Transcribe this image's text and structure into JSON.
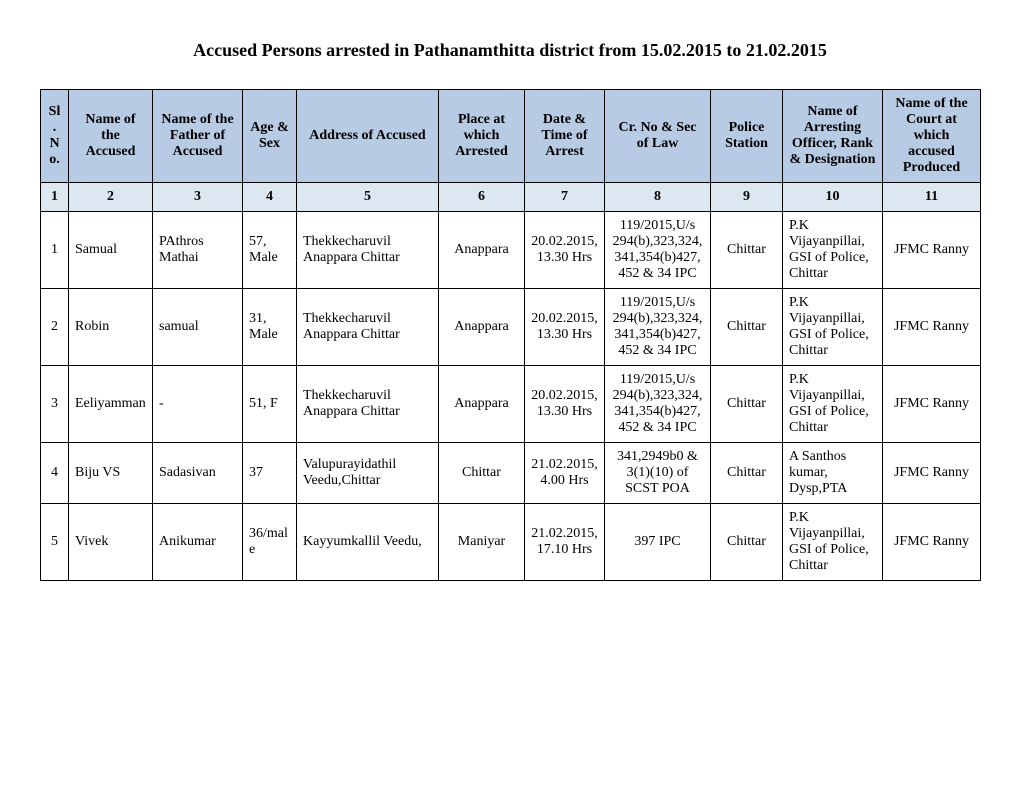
{
  "title": "Accused Persons arrested in Pathanamthitta  district from   15.02.2015 to 21.02.2015",
  "columns": [
    "Sl. No.",
    "Name of the Accused",
    "Name of the Father of Accused",
    "Age & Sex",
    "Address of Accused",
    "Place at which Arrested",
    "Date & Time of Arrest",
    "Cr. No & Sec of Law",
    "Police Station",
    "Name of Arresting Officer, Rank & Designation",
    "Name of the Court at which accused Produced"
  ],
  "numrow": [
    "1",
    "2",
    "3",
    "4",
    "5",
    "6",
    "7",
    "8",
    "9",
    "10",
    "11"
  ],
  "rows": [
    {
      "sl": "1",
      "name": "Samual",
      "father": "PAthros Mathai",
      "age": "57, Male",
      "addr": "Thekkecharuvil Anappara Chittar",
      "place": "Anappara",
      "date": "20.02.2015,13.30 Hrs",
      "cr": "119/2015,U/s 294(b),323,324,341,354(b)427,452 & 34 IPC",
      "ps": "Chittar",
      "officer": "P.K Vijayanpillai, GSI of Police, Chittar",
      "court": "JFMC Ranny"
    },
    {
      "sl": "2",
      "name": "Robin",
      "father": "samual",
      "age": "31, Male",
      "addr": "Thekkecharuvil Anappara Chittar",
      "place": "Anappara",
      "date": "20.02.2015,13.30 Hrs",
      "cr": "119/2015,U/s 294(b),323,324,341,354(b)427,452 & 34 IPC",
      "ps": "Chittar",
      "officer": "P.K Vijayanpillai, GSI of Police, Chittar",
      "court": "JFMC Ranny"
    },
    {
      "sl": "3",
      "name": "Eeliyamman",
      "father": "-",
      "age": "51, F",
      "addr": "Thekkecharuvil Anappara Chittar",
      "place": "Anappara",
      "date": "20.02.2015,13.30 Hrs",
      "cr": "119/2015,U/s 294(b),323,324,341,354(b)427,452 & 34 IPC",
      "ps": "Chittar",
      "officer": "P.K Vijayanpillai, GSI of Police, Chittar",
      "court": "JFMC Ranny"
    },
    {
      "sl": "4",
      "name": "Biju VS",
      "father": "Sadasivan",
      "age": "37",
      "addr": "Valupurayidathil Veedu,Chittar",
      "place": "Chittar",
      "date": "21.02.2015,4.00 Hrs",
      "cr": "341,2949b0 & 3(1)(10) of SCST  POA",
      "ps": "Chittar",
      "officer": "A Santhos kumar, Dysp,PTA",
      "court": "JFMC Ranny"
    },
    {
      "sl": "5",
      "name": "Vivek",
      "father": "Anikumar",
      "age": "36/male",
      "addr": "Kayyumkallil Veedu,",
      "place": "Maniyar",
      "date": "21.02.2015,17.10 Hrs",
      "cr": "397 IPC",
      "ps": "Chittar",
      "officer": "P.K Vijayanpillai, GSI of Police, Chittar",
      "court": "JFMC Ranny"
    }
  ],
  "style": {
    "page_bg": "#ffffff",
    "header_bg": "#b7cce4",
    "numrow_bg": "#dce7f2",
    "border_color": "#000000",
    "title_fontsize": 18,
    "cell_fontsize": 14,
    "font_family": "Times New Roman"
  }
}
